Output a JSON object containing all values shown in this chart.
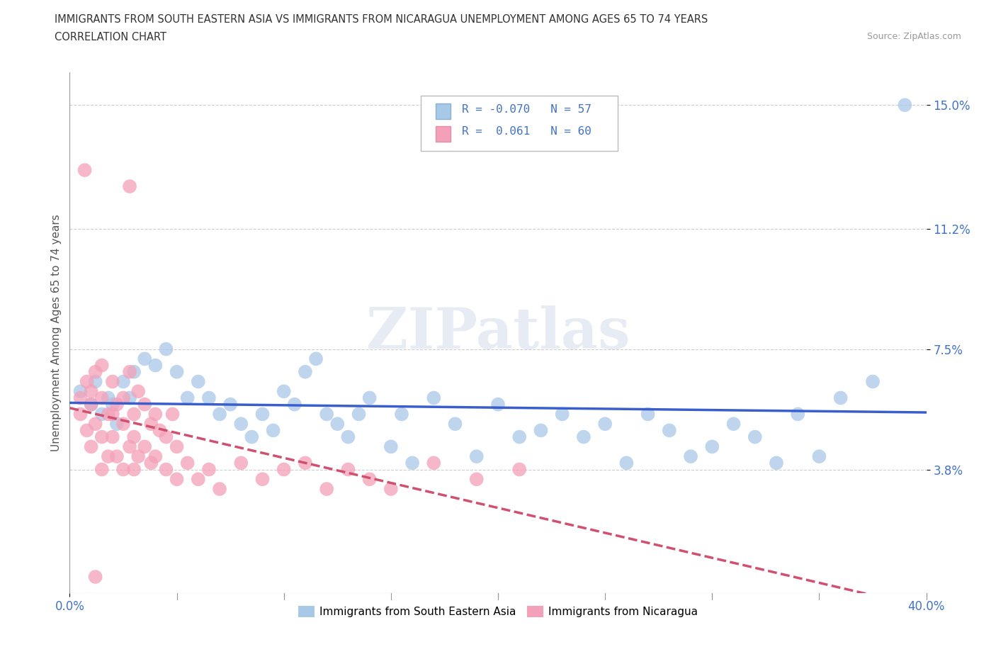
{
  "title_line1": "IMMIGRANTS FROM SOUTH EASTERN ASIA VS IMMIGRANTS FROM NICARAGUA UNEMPLOYMENT AMONG AGES 65 TO 74 YEARS",
  "title_line2": "CORRELATION CHART",
  "source_text": "Source: ZipAtlas.com",
  "ylabel": "Unemployment Among Ages 65 to 74 years",
  "legend_bottom": [
    "Immigrants from South Eastern Asia",
    "Immigrants from Nicaragua"
  ],
  "r_sea": -0.07,
  "n_sea": 57,
  "r_nic": 0.061,
  "n_nic": 60,
  "xlim": [
    0.0,
    0.4
  ],
  "ylim": [
    0.0,
    0.16
  ],
  "xtick_vals": [
    0.0,
    0.1,
    0.2,
    0.3,
    0.4
  ],
  "xtick_labels": [
    "0.0%",
    "",
    "",
    "",
    "40.0%"
  ],
  "ytick_positions": [
    0.038,
    0.075,
    0.112,
    0.15
  ],
  "ytick_labels": [
    "3.8%",
    "7.5%",
    "11.2%",
    "15.0%"
  ],
  "color_sea": "#a8c8e8",
  "color_nic": "#f4a0b8",
  "trendline_sea": "#3a5fcd",
  "trendline_nic": "#d05070",
  "watermark": "ZIPatlas",
  "background_color": "#ffffff",
  "grid_color": "#cccccc",
  "sea_x": [
    0.005,
    0.01,
    0.012,
    0.015,
    0.018,
    0.02,
    0.022,
    0.025,
    0.028,
    0.03,
    0.035,
    0.04,
    0.045,
    0.05,
    0.055,
    0.06,
    0.065,
    0.07,
    0.075,
    0.08,
    0.085,
    0.09,
    0.095,
    0.1,
    0.105,
    0.11,
    0.115,
    0.12,
    0.125,
    0.13,
    0.135,
    0.14,
    0.15,
    0.155,
    0.16,
    0.17,
    0.18,
    0.19,
    0.2,
    0.21,
    0.22,
    0.23,
    0.24,
    0.25,
    0.26,
    0.27,
    0.28,
    0.29,
    0.3,
    0.31,
    0.32,
    0.33,
    0.34,
    0.35,
    0.36,
    0.375,
    0.39
  ],
  "sea_y": [
    0.062,
    0.058,
    0.065,
    0.055,
    0.06,
    0.058,
    0.052,
    0.065,
    0.06,
    0.068,
    0.072,
    0.07,
    0.075,
    0.068,
    0.06,
    0.065,
    0.06,
    0.055,
    0.058,
    0.052,
    0.048,
    0.055,
    0.05,
    0.062,
    0.058,
    0.068,
    0.072,
    0.055,
    0.052,
    0.048,
    0.055,
    0.06,
    0.045,
    0.055,
    0.04,
    0.06,
    0.052,
    0.042,
    0.058,
    0.048,
    0.05,
    0.055,
    0.048,
    0.052,
    0.04,
    0.055,
    0.05,
    0.042,
    0.045,
    0.052,
    0.048,
    0.04,
    0.055,
    0.042,
    0.06,
    0.065,
    0.15
  ],
  "nic_x": [
    0.005,
    0.005,
    0.008,
    0.008,
    0.01,
    0.01,
    0.01,
    0.012,
    0.012,
    0.015,
    0.015,
    0.015,
    0.015,
    0.018,
    0.018,
    0.02,
    0.02,
    0.02,
    0.022,
    0.022,
    0.025,
    0.025,
    0.025,
    0.028,
    0.028,
    0.03,
    0.03,
    0.03,
    0.032,
    0.032,
    0.035,
    0.035,
    0.038,
    0.038,
    0.04,
    0.04,
    0.042,
    0.045,
    0.045,
    0.048,
    0.05,
    0.05,
    0.055,
    0.06,
    0.065,
    0.07,
    0.08,
    0.09,
    0.1,
    0.11,
    0.12,
    0.13,
    0.14,
    0.15,
    0.17,
    0.19,
    0.21,
    0.23,
    0.012,
    0.01
  ],
  "nic_y": [
    0.06,
    0.055,
    0.065,
    0.05,
    0.062,
    0.058,
    0.045,
    0.068,
    0.052,
    0.06,
    0.048,
    0.07,
    0.038,
    0.055,
    0.042,
    0.065,
    0.055,
    0.048,
    0.058,
    0.042,
    0.06,
    0.052,
    0.038,
    0.068,
    0.045,
    0.055,
    0.048,
    0.038,
    0.062,
    0.042,
    0.058,
    0.045,
    0.052,
    0.04,
    0.055,
    0.042,
    0.05,
    0.048,
    0.038,
    0.055,
    0.045,
    0.035,
    0.04,
    0.035,
    0.038,
    0.032,
    0.04,
    0.035,
    0.038,
    0.04,
    0.032,
    0.038,
    0.035,
    0.032,
    0.04,
    0.035,
    0.038,
    0.042,
    0.128,
    0.125
  ]
}
